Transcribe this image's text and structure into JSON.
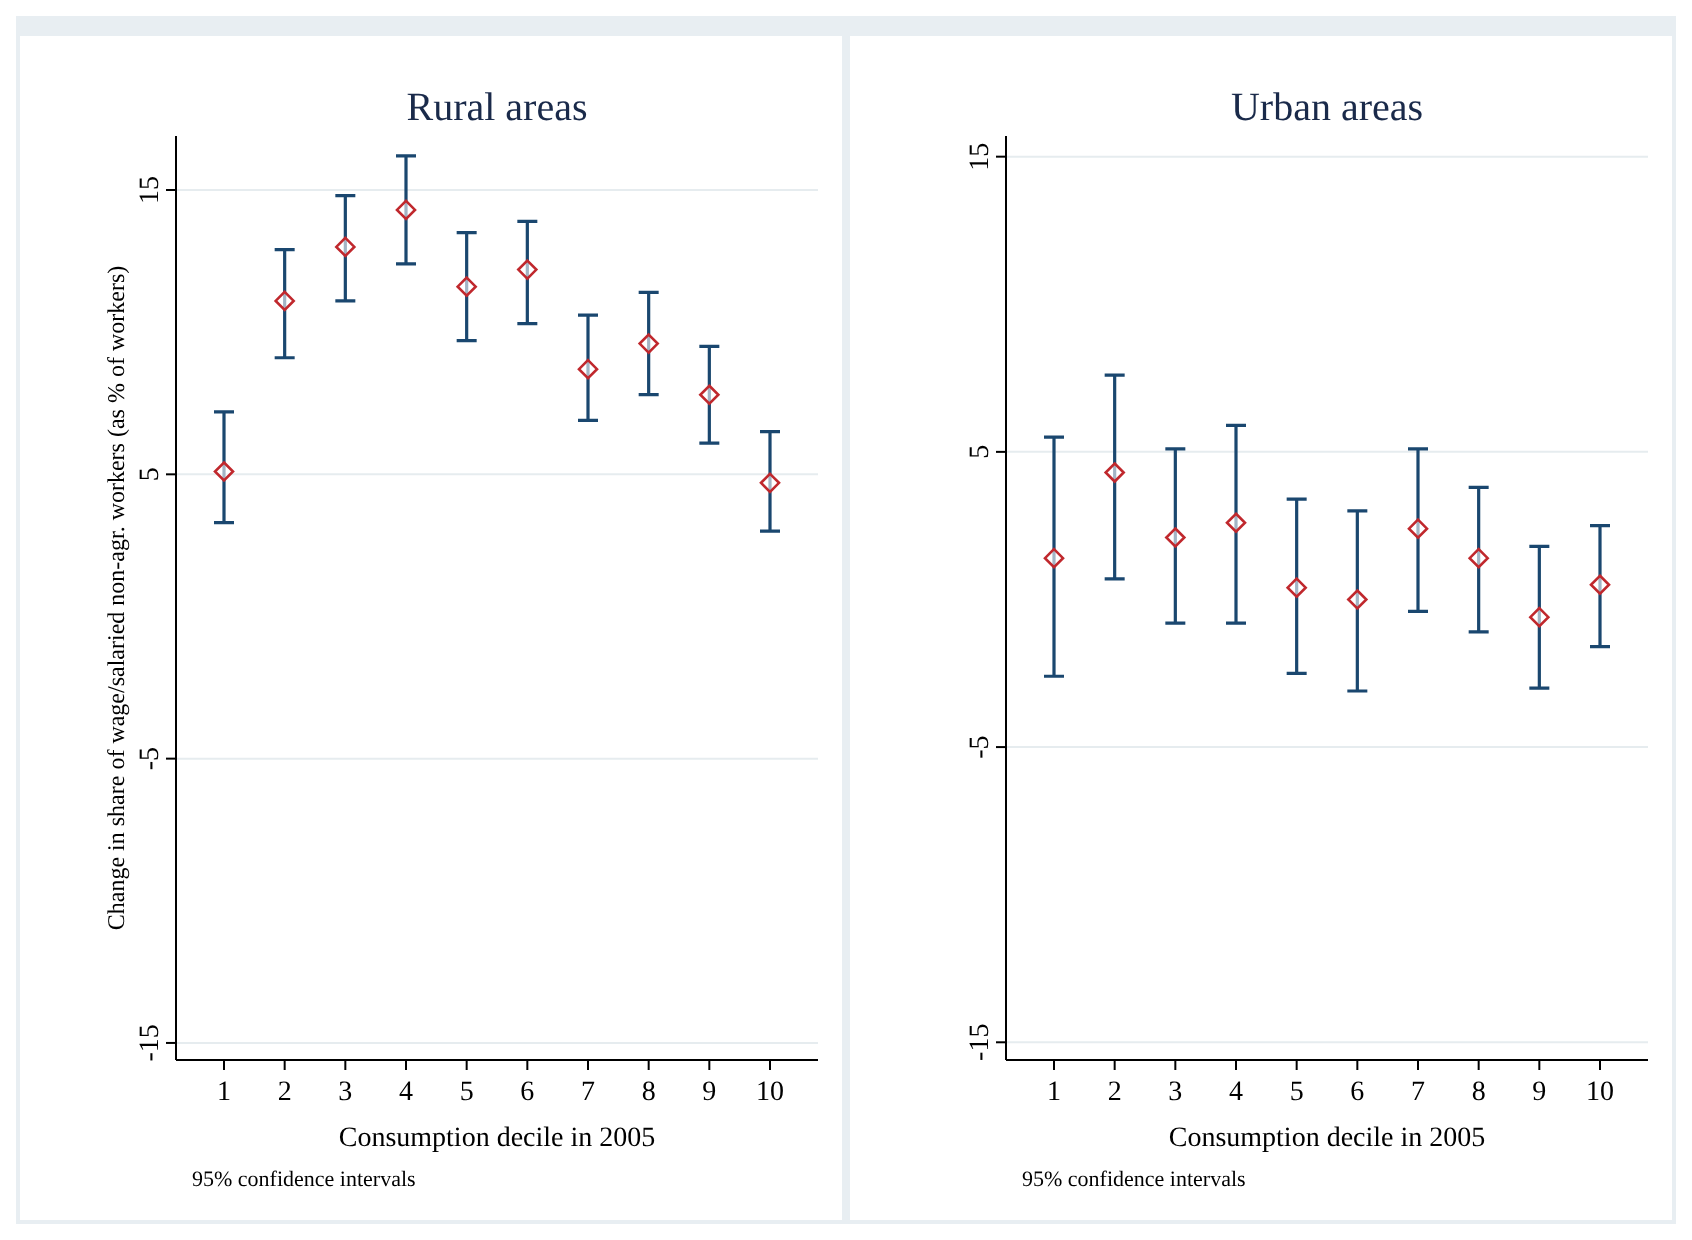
{
  "chart_data": [
    {
      "type": "scatter",
      "title": "Rural areas",
      "xlabel": "Consumption decile in 2005",
      "ylabel": "Change in share of wage/salaried  non-agr. workers (as % of workers)",
      "categories": [
        "1",
        "2",
        "3",
        "4",
        "5",
        "6",
        "7",
        "8",
        "9",
        "10"
      ],
      "ylim": [
        -15.6,
        16.9
      ],
      "yticks": [
        -15,
        -5,
        5,
        15
      ],
      "grid": "y",
      "marker": "diamond",
      "annotations": [
        "95%  confidence intervals"
      ],
      "series": [
        {
          "color": "#c0282d",
          "values": [
            5.1,
            11.1,
            13.0,
            14.3,
            11.6,
            12.2,
            8.7,
            9.6,
            7.8,
            4.7
          ],
          "errors": [
            [
              3.3,
              7.2
            ],
            [
              9.1,
              12.9
            ],
            [
              11.1,
              14.8
            ],
            [
              12.4,
              16.2
            ],
            [
              9.7,
              13.5
            ],
            [
              10.3,
              13.9
            ],
            [
              6.9,
              10.6
            ],
            [
              7.8,
              11.4
            ],
            [
              6.1,
              9.5
            ],
            [
              3.0,
              6.5
            ]
          ]
        }
      ]
    },
    {
      "type": "scatter",
      "title": "Urban areas",
      "xlabel": "Consumption decile in 2005",
      "categories": [
        "1",
        "2",
        "3",
        "4",
        "5",
        "6",
        "7",
        "8",
        "9",
        "10"
      ],
      "ylim": [
        -15.6,
        15.7
      ],
      "yticks": [
        -15,
        -5,
        5,
        15
      ],
      "grid": "y",
      "marker": "diamond",
      "annotations": [
        "95%  confidence intervals"
      ],
      "series": [
        {
          "color": "#c0282d",
          "values": [
            1.4,
            4.3,
            2.1,
            2.6,
            0.4,
            0.0,
            2.4,
            1.4,
            -0.6,
            0.5
          ],
          "errors": [
            [
              -2.6,
              5.5
            ],
            [
              0.7,
              7.6
            ],
            [
              -0.8,
              5.1
            ],
            [
              -0.8,
              5.9
            ],
            [
              -2.5,
              3.4
            ],
            [
              -3.1,
              3.0
            ],
            [
              -0.4,
              5.1
            ],
            [
              -1.1,
              3.8
            ],
            [
              -3.0,
              1.8
            ],
            [
              -1.6,
              2.5
            ]
          ]
        }
      ]
    }
  ]
}
